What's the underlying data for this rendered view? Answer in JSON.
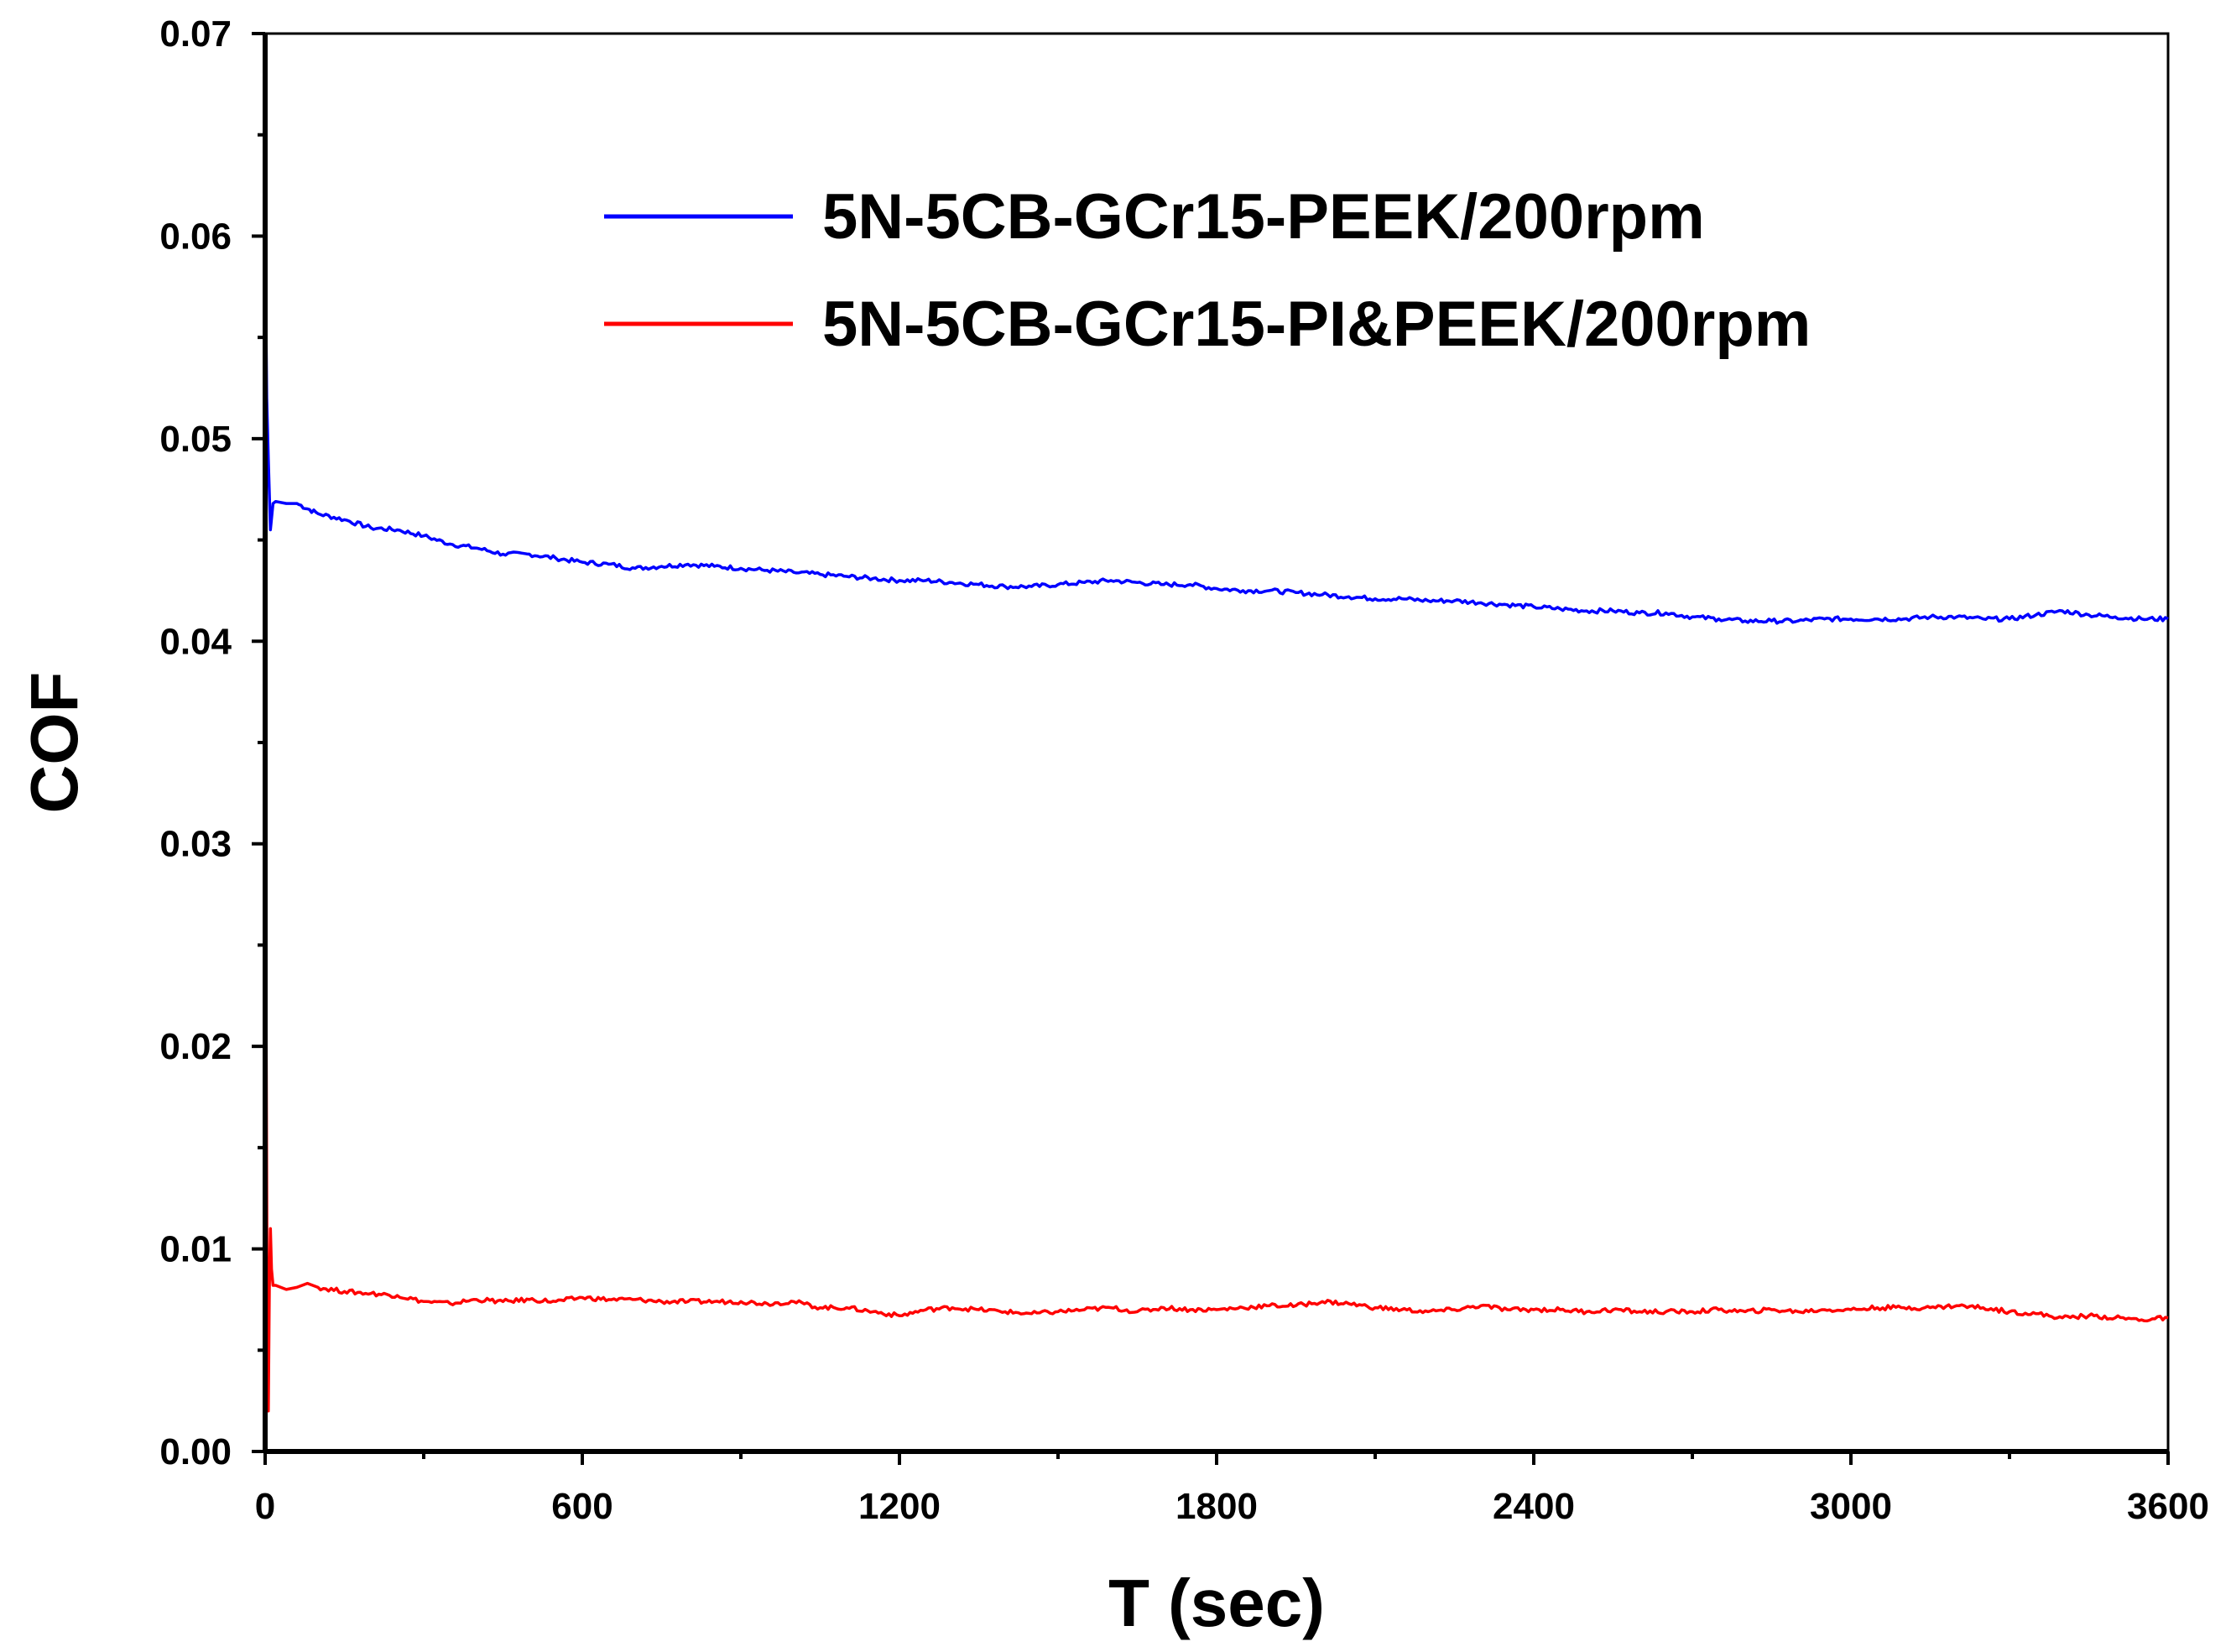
{
  "chart_data": {
    "type": "line",
    "title": "",
    "xlabel": "T (sec)",
    "ylabel": "COF",
    "xlim": [
      0,
      3600
    ],
    "ylim": [
      0.0,
      0.07
    ],
    "xticks": [
      0,
      600,
      1200,
      1800,
      2400,
      3000,
      3600
    ],
    "xtick_labels": [
      "0",
      "600",
      "1200",
      "1800",
      "2400",
      "3000",
      "3600"
    ],
    "yticks": [
      0.0,
      0.01,
      0.02,
      0.03,
      0.04,
      0.05,
      0.06,
      0.07
    ],
    "ytick_labels": [
      "0.00",
      "0.01",
      "0.02",
      "0.03",
      "0.04",
      "0.05",
      "0.06",
      "0.07"
    ],
    "grid": false,
    "legend_position": "top-right",
    "series": [
      {
        "name": "5N-5CB-GCr15-PEEK/200rpm",
        "color": "#0000ff",
        "x": [
          0,
          3,
          6,
          10,
          15,
          20,
          40,
          60,
          100,
          150,
          200,
          250,
          300,
          350,
          400,
          450,
          500,
          550,
          600,
          650,
          700,
          750,
          800,
          850,
          900,
          950,
          1000,
          1050,
          1100,
          1150,
          1200,
          1250,
          1300,
          1350,
          1400,
          1450,
          1500,
          1550,
          1600,
          1650,
          1700,
          1750,
          1800,
          1850,
          1900,
          1950,
          2000,
          2050,
          2100,
          2150,
          2200,
          2250,
          2300,
          2350,
          2400,
          2450,
          2500,
          2550,
          2600,
          2650,
          2700,
          2750,
          2800,
          2850,
          2900,
          2950,
          3000,
          3050,
          3100,
          3150,
          3200,
          3250,
          3300,
          3350,
          3400,
          3450,
          3500,
          3550,
          3600
        ],
        "y": [
          0.06,
          0.052,
          0.049,
          0.0455,
          0.0468,
          0.0469,
          0.0468,
          0.0468,
          0.0463,
          0.046,
          0.0456,
          0.0455,
          0.0452,
          0.0448,
          0.0446,
          0.0443,
          0.0443,
          0.0441,
          0.0439,
          0.0438,
          0.0436,
          0.0437,
          0.0438,
          0.0437,
          0.0436,
          0.0435,
          0.0434,
          0.0433,
          0.0432,
          0.0431,
          0.043,
          0.043,
          0.0429,
          0.0428,
          0.0427,
          0.0427,
          0.0428,
          0.0429,
          0.043,
          0.0429,
          0.0428,
          0.0428,
          0.0426,
          0.0425,
          0.0425,
          0.0424,
          0.0423,
          0.0422,
          0.0421,
          0.0421,
          0.042,
          0.042,
          0.0419,
          0.0418,
          0.0417,
          0.0416,
          0.0415,
          0.0415,
          0.0414,
          0.0414,
          0.0412,
          0.0411,
          0.041,
          0.041,
          0.041,
          0.0411,
          0.0411,
          0.0411,
          0.0411,
          0.0412,
          0.0412,
          0.0411,
          0.0411,
          0.0413,
          0.0415,
          0.0413,
          0.0412,
          0.0411,
          0.0411
        ]
      },
      {
        "name": "5N-5CB-GCr15-PI&PEEK/200rpm",
        "color": "#ff0000",
        "x": [
          0,
          2,
          4,
          6,
          8,
          10,
          12,
          15,
          20,
          40,
          60,
          80,
          100,
          150,
          200,
          250,
          300,
          350,
          400,
          450,
          500,
          550,
          600,
          650,
          700,
          750,
          800,
          850,
          900,
          950,
          1000,
          1050,
          1100,
          1150,
          1200,
          1250,
          1300,
          1350,
          1400,
          1450,
          1500,
          1550,
          1600,
          1650,
          1700,
          1750,
          1800,
          1850,
          1900,
          1950,
          2000,
          2050,
          2100,
          2150,
          2200,
          2250,
          2300,
          2350,
          2400,
          2450,
          2500,
          2550,
          2600,
          2650,
          2700,
          2750,
          2800,
          2850,
          2900,
          2950,
          3000,
          3050,
          3100,
          3150,
          3200,
          3250,
          3300,
          3350,
          3400,
          3450,
          3500,
          3550,
          3600
        ],
        "y": [
          0.048,
          0.02,
          0.006,
          0.002,
          0.008,
          0.011,
          0.009,
          0.0082,
          0.0082,
          0.008,
          0.0081,
          0.0083,
          0.0081,
          0.0079,
          0.0078,
          0.0077,
          0.0074,
          0.0073,
          0.0075,
          0.0074,
          0.0075,
          0.0074,
          0.0076,
          0.0075,
          0.0075,
          0.0074,
          0.0074,
          0.0074,
          0.0074,
          0.0073,
          0.0074,
          0.0071,
          0.0071,
          0.0069,
          0.0067,
          0.007,
          0.0071,
          0.007,
          0.0069,
          0.0068,
          0.0069,
          0.007,
          0.0071,
          0.0069,
          0.0071,
          0.007,
          0.007,
          0.0071,
          0.0072,
          0.0072,
          0.0074,
          0.0073,
          0.0071,
          0.007,
          0.0069,
          0.007,
          0.0072,
          0.007,
          0.007,
          0.007,
          0.0069,
          0.007,
          0.0069,
          0.0069,
          0.0069,
          0.007,
          0.0069,
          0.007,
          0.0069,
          0.007,
          0.007,
          0.0071,
          0.0071,
          0.0071,
          0.0072,
          0.0071,
          0.0069,
          0.0068,
          0.0066,
          0.0067,
          0.0066,
          0.0065,
          0.0066
        ]
      }
    ]
  }
}
